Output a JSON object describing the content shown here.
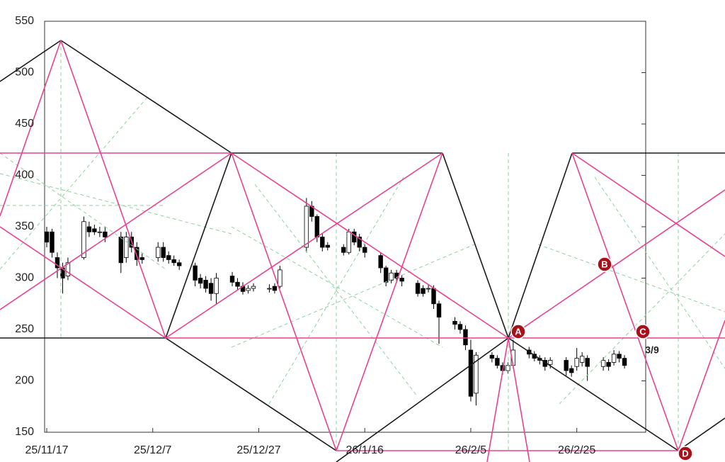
{
  "chart_data": {
    "type": "candlestick",
    "x": [
      "25/11/17",
      "25/11/18",
      "25/11/19",
      "25/11/20",
      "25/11/21",
      "25/11/24",
      "25/11/25",
      "25/11/26",
      "25/11/27",
      "25/11/28",
      "25/12/1",
      "25/12/2",
      "25/12/3",
      "25/12/4",
      "25/12/5",
      "25/12/8",
      "25/12/9",
      "25/12/10",
      "25/12/11",
      "25/12/12",
      "25/12/15",
      "25/12/16",
      "25/12/17",
      "25/12/18",
      "25/12/19",
      "25/12/22",
      "25/12/23",
      "25/12/24",
      "25/12/25",
      "25/12/26",
      "25/12/29",
      "25/12/30",
      "25/12/31",
      "26/1/5",
      "26/1/6",
      "26/1/7",
      "26/1/8",
      "26/1/9",
      "26/1/12",
      "26/1/13",
      "26/1/14",
      "26/1/15",
      "26/1/16",
      "26/1/19",
      "26/1/20",
      "26/1/21",
      "26/1/22",
      "26/1/23",
      "26/1/26",
      "26/1/27",
      "26/1/28",
      "26/1/29",
      "26/1/30",
      "26/2/2",
      "26/2/3",
      "26/2/4",
      "26/2/5",
      "26/2/6",
      "26/2/9",
      "26/2/10",
      "26/2/11",
      "26/2/12",
      "26/2/13",
      "26/2/16",
      "26/2/17",
      "26/2/18",
      "26/2/19",
      "26/2/20",
      "26/2/23",
      "26/2/24",
      "26/2/25",
      "26/2/26",
      "26/2/27",
      "26/3/2",
      "26/3/3",
      "26/3/4",
      "26/3/5",
      "26/3/6"
    ],
    "open": [
      345,
      345,
      320,
      310,
      302,
      320,
      350,
      348,
      345,
      345,
      340,
      320,
      340,
      330,
      320,
      320,
      330,
      322,
      318,
      315,
      312,
      300,
      298,
      295,
      285,
      302,
      296,
      292,
      288,
      290,
      290,
      292,
      292,
      330,
      370,
      360,
      340,
      332,
      330,
      325,
      345,
      340,
      330,
      322,
      310,
      298,
      305,
      300,
      295,
      290,
      290,
      290,
      275,
      258,
      255,
      250,
      230,
      188,
      225,
      222,
      215,
      210,
      215,
      230,
      226,
      222,
      220,
      216,
      220,
      212,
      214,
      218,
      222,
      214,
      218,
      218,
      226,
      222
    ],
    "high": [
      350,
      348,
      325,
      315,
      320,
      360,
      355,
      352,
      350,
      350,
      345,
      345,
      345,
      335,
      324,
      335,
      335,
      326,
      322,
      318,
      315,
      304,
      302,
      300,
      305,
      306,
      300,
      296,
      293,
      295,
      294,
      295,
      312,
      378,
      375,
      362,
      343,
      335,
      333,
      348,
      348,
      343,
      333,
      325,
      312,
      308,
      308,
      303,
      298,
      293,
      294,
      293,
      278,
      262,
      258,
      254,
      240,
      228,
      228,
      225,
      218,
      218,
      240,
      233,
      229,
      225,
      223,
      223,
      223,
      215,
      232,
      228,
      225,
      223,
      221,
      230,
      229,
      225
    ],
    "low": [
      330,
      320,
      300,
      285,
      298,
      318,
      340,
      342,
      340,
      335,
      305,
      315,
      325,
      312,
      314,
      316,
      316,
      314,
      312,
      308,
      292,
      290,
      286,
      278,
      275,
      292,
      288,
      284,
      285,
      287,
      286,
      285,
      290,
      325,
      355,
      335,
      326,
      327,
      322,
      323,
      332,
      326,
      320,
      305,
      292,
      295,
      296,
      292,
      282,
      282,
      286,
      270,
      236,
      250,
      246,
      230,
      180,
      176,
      218,
      212,
      206,
      207,
      212,
      222,
      219,
      216,
      210,
      212,
      205,
      204,
      210,
      214,
      200,
      210,
      210,
      215,
      218,
      212
    ],
    "close": [
      335,
      325,
      310,
      300,
      315,
      355,
      345,
      345,
      345,
      340,
      315,
      340,
      330,
      318,
      318,
      330,
      320,
      318,
      315,
      312,
      298,
      295,
      290,
      285,
      300,
      296,
      292,
      287,
      290,
      292,
      290,
      288,
      308,
      370,
      360,
      340,
      330,
      330,
      325,
      345,
      335,
      330,
      325,
      310,
      296,
      305,
      300,
      297,
      285,
      285,
      290,
      275,
      262,
      255,
      250,
      235,
      185,
      225,
      222,
      215,
      210,
      215,
      230,
      226,
      222,
      220,
      214,
      220,
      210,
      208,
      222,
      224,
      214,
      220,
      214,
      226,
      222,
      215
    ],
    "xlim": [
      "25/11/17",
      "26/3/10"
    ],
    "xticks": [
      "25/11/17",
      "25/12/7",
      "25/12/27",
      "26/1/16",
      "26/2/5",
      "26/2/25"
    ],
    "ylim": [
      150,
      550
    ],
    "yticks": [
      150,
      200,
      250,
      300,
      350,
      400,
      450,
      500,
      550
    ],
    "up_color": "#ffffff",
    "down_color": "#000000",
    "annotations": [
      "A",
      "B",
      "C",
      "D",
      "3/9"
    ]
  }
}
